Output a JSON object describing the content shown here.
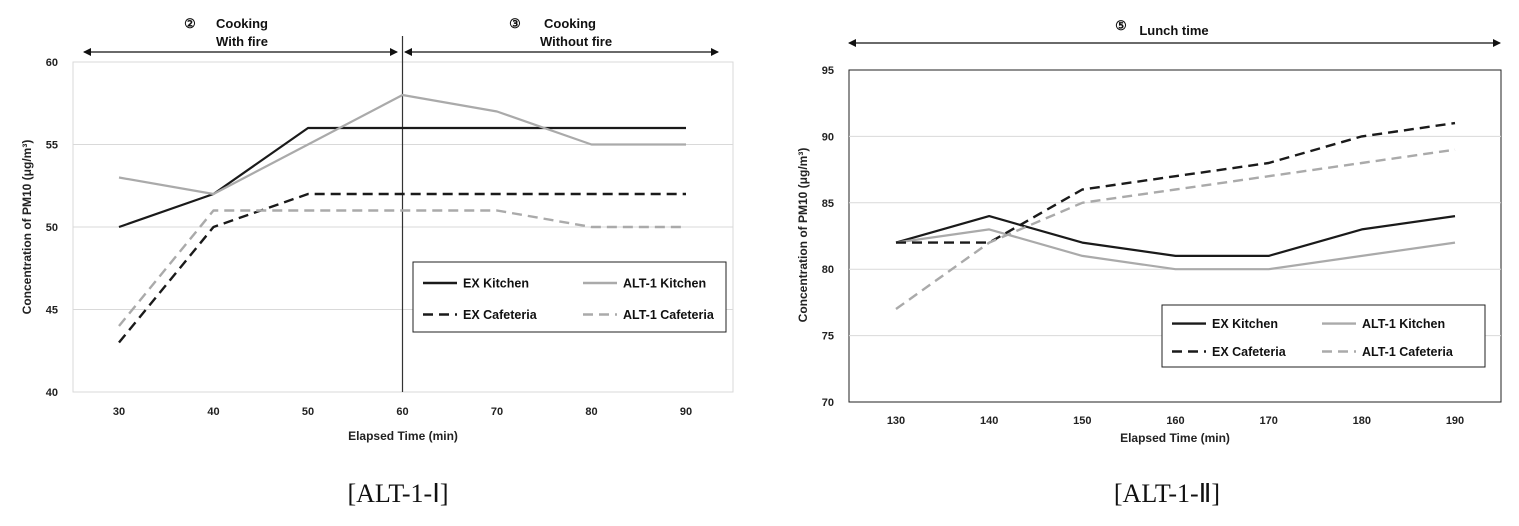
{
  "chart_data": [
    {
      "type": "line",
      "caption": "[ALT-1-Ⅰ]",
      "xlabel": "Elapsed Time (min)",
      "ylabel": "Concentration of PM10 (μg/m³)",
      "x": [
        30,
        40,
        50,
        60,
        70,
        80,
        90
      ],
      "ylim": [
        40,
        60
      ],
      "yticks": [
        40,
        45,
        50,
        55,
        60
      ],
      "grid": true,
      "legend_position": "bottom-right",
      "phases": [
        {
          "marker": "②",
          "lines": [
            "Cooking",
            "With fire"
          ]
        },
        {
          "marker": "③",
          "lines": [
            "Cooking",
            "Without fire"
          ]
        }
      ],
      "divider_x": 60,
      "series": [
        {
          "name": "EX Kitchen",
          "values": [
            50,
            52,
            56,
            56,
            56,
            56,
            56
          ],
          "color": "#1a1a1a",
          "dash": false
        },
        {
          "name": "ALT-1 Kitchen",
          "values": [
            53,
            52,
            55,
            58,
            57,
            55,
            55
          ],
          "color": "#aaaaaa",
          "dash": false
        },
        {
          "name": "EX Cafeteria",
          "values": [
            43,
            50,
            52,
            52,
            52,
            52,
            52
          ],
          "color": "#1a1a1a",
          "dash": true
        },
        {
          "name": "ALT-1 Cafeteria",
          "values": [
            44,
            51,
            51,
            51,
            51,
            50,
            50
          ],
          "color": "#aaaaaa",
          "dash": true
        }
      ]
    },
    {
      "type": "line",
      "caption": "[ALT-1-Ⅱ]",
      "xlabel": "Elapsed Time (min)",
      "ylabel": "Concentration of PM10 (μg/m³)",
      "x": [
        130,
        140,
        150,
        160,
        170,
        180,
        190
      ],
      "ylim": [
        70,
        95
      ],
      "yticks": [
        70,
        75,
        80,
        85,
        90,
        95
      ],
      "grid": true,
      "legend_position": "bottom-right",
      "phases": [
        {
          "marker": "⑤",
          "lines": [
            "Lunch time"
          ]
        }
      ],
      "series": [
        {
          "name": "EX Kitchen",
          "values": [
            82,
            84,
            82,
            81,
            81,
            83,
            84
          ],
          "color": "#1a1a1a",
          "dash": false
        },
        {
          "name": "ALT-1 Kitchen",
          "values": [
            82,
            83,
            81,
            80,
            80,
            81,
            82
          ],
          "color": "#aaaaaa",
          "dash": false
        },
        {
          "name": "EX Cafeteria",
          "values": [
            82,
            82,
            86,
            87,
            88,
            90,
            91
          ],
          "color": "#1a1a1a",
          "dash": true
        },
        {
          "name": "ALT-1 Cafeteria",
          "values": [
            77,
            82,
            85,
            86,
            87,
            88,
            89
          ],
          "color": "#aaaaaa",
          "dash": true
        }
      ]
    }
  ]
}
